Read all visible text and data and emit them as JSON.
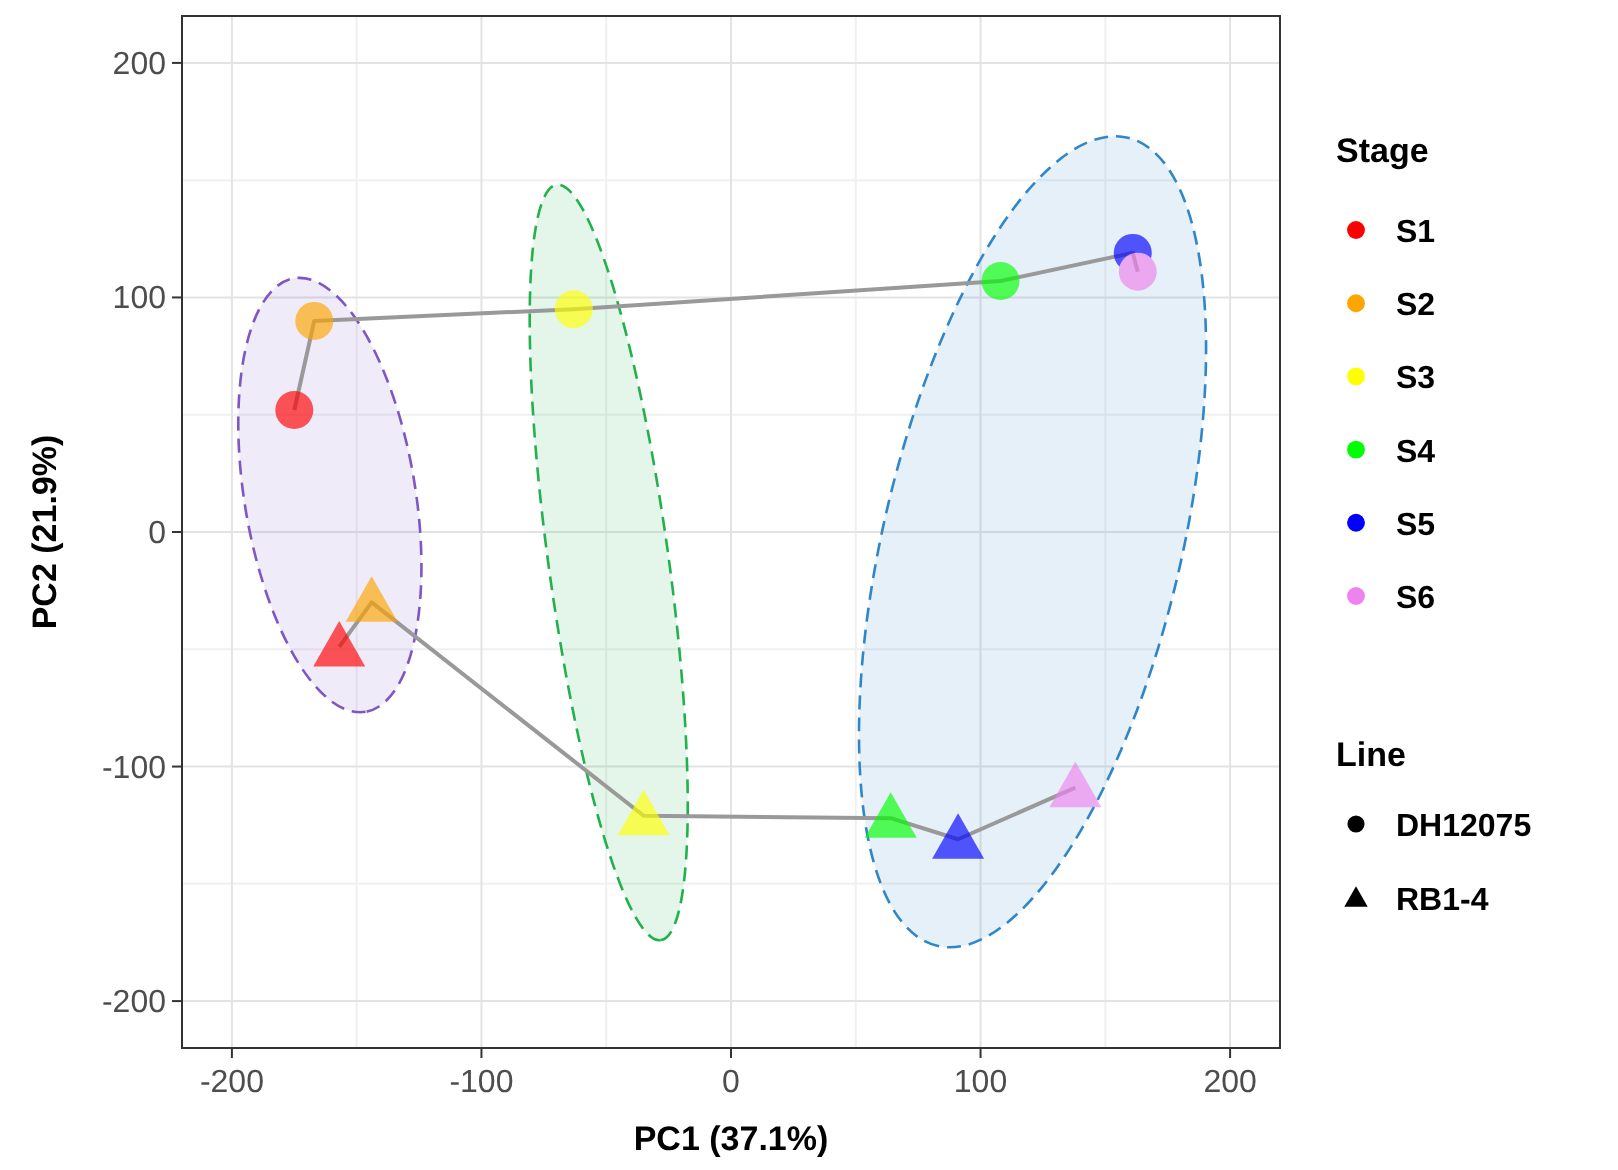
{
  "chart_data": {
    "type": "scatter",
    "xlabel": "PC1 (37.1%)",
    "ylabel": "PC2 (21.9%)",
    "legend_title": [
      "Stage",
      "Line"
    ],
    "series": [
      {
        "name": "DH12075",
        "type": "line",
        "marker": "circle",
        "color": "#999999",
        "colors": [
          "#ff0000",
          "#ffa500",
          "#ffff00",
          "#00ff00",
          "#0000ff",
          "#ee82ee"
        ],
        "x": [
          -175,
          -167,
          -63,
          108,
          161,
          163
        ],
        "values": [
          52,
          90,
          95,
          107,
          119,
          111
        ]
      },
      {
        "name": "RB1-4",
        "type": "line",
        "marker": "triangle",
        "color": "#999999",
        "colors": [
          "#ff0000",
          "#ffa500",
          "#ffff00",
          "#00ff00",
          "#0000ff",
          "#ee82ee"
        ],
        "x": [
          -157,
          -144,
          -35,
          64,
          91,
          138
        ],
        "values": [
          -49,
          -30,
          -121,
          -122,
          -131,
          -109
        ]
      },
      {
        "name": "S1",
        "color": "#ff0000"
      },
      {
        "name": "S2",
        "color": "#ffa500"
      },
      {
        "name": "S3",
        "color": "#ffff00"
      },
      {
        "name": "S4",
        "color": "#00ff00"
      },
      {
        "name": "S5",
        "color": "#0000ff"
      },
      {
        "name": "S6",
        "color": "#ee82ee"
      }
    ],
    "xlim": [
      -220,
      220
    ],
    "ylim": [
      -220,
      220
    ],
    "xticks": [
      -200,
      -100,
      0,
      100,
      200
    ],
    "yticks": [
      -200,
      -100,
      0,
      100,
      200
    ],
    "grid": true,
    "legend": "right"
  }
}
